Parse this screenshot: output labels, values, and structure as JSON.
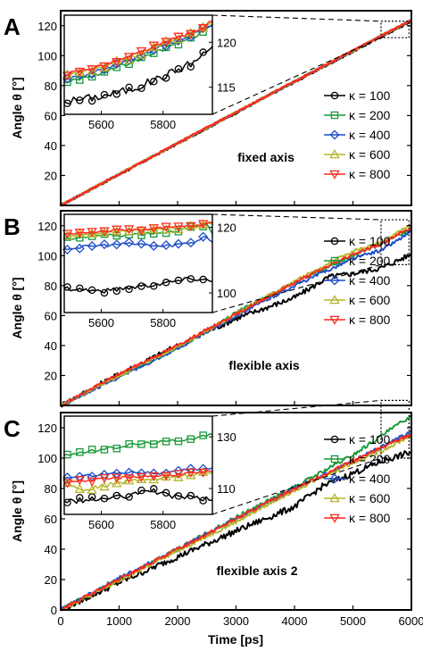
{
  "x_axis_label": "Time [ps]",
  "colors": [
    "#000000",
    "#1a9a3a",
    "#1f4fc8",
    "#b5b52a",
    "#ff2a1e"
  ],
  "chart_data": [
    {
      "type": "line",
      "panel_label": "A",
      "annotation": "fixed axis",
      "ylabel": "Angle θ [°]",
      "xlim": [
        0,
        6000
      ],
      "ylim": [
        0,
        130
      ],
      "x_ticks": [
        "0",
        "1000",
        "2000",
        "3000",
        "4000",
        "5000",
        "6000"
      ],
      "y_ticks": [
        "20",
        "40",
        "60",
        "80",
        "100",
        "120"
      ],
      "series": [
        {
          "name": "κ = 100",
          "marker": "circle",
          "x": [
            0,
            1000,
            2000,
            3000,
            4000,
            5000,
            6000
          ],
          "y": [
            0,
            20.6,
            41.3,
            61.8,
            82.4,
            102.8,
            123.0
          ]
        },
        {
          "name": "κ = 200",
          "marker": "square",
          "x": [
            0,
            1000,
            2000,
            3000,
            4000,
            5000,
            6000
          ],
          "y": [
            0,
            20.8,
            41.5,
            62.1,
            82.7,
            103.2,
            123.6
          ]
        },
        {
          "name": "κ = 400",
          "marker": "diamond",
          "x": [
            0,
            1000,
            2000,
            3000,
            4000,
            5000,
            6000
          ],
          "y": [
            0,
            20.8,
            41.5,
            62.1,
            82.7,
            103.3,
            123.7
          ]
        },
        {
          "name": "κ = 600",
          "marker": "triangle-up",
          "x": [
            0,
            1000,
            2000,
            3000,
            4000,
            5000,
            6000
          ],
          "y": [
            0,
            20.8,
            41.6,
            62.2,
            82.8,
            103.4,
            123.8
          ]
        },
        {
          "name": "κ = 800",
          "marker": "triangle-down",
          "x": [
            0,
            1000,
            2000,
            3000,
            4000,
            5000,
            6000
          ],
          "y": [
            0,
            20.8,
            41.6,
            62.2,
            82.8,
            103.4,
            123.8
          ]
        }
      ],
      "inset": {
        "xlim": [
          5480,
          5960
        ],
        "ylim": [
          112,
          123
        ],
        "x_ticks": [
          "5600",
          "5800"
        ],
        "y_ticks": [
          "115",
          "120"
        ],
        "series": [
          {
            "name": "κ = 100",
            "x": [
              5480,
              5600,
              5700,
              5800,
              5900,
              5960
            ],
            "y": [
              113.4,
              114.0,
              114.8,
              116.2,
              117.8,
              119.5
            ]
          },
          {
            "name": "κ = 200",
            "x": [
              5480,
              5600,
              5700,
              5800,
              5900,
              5960
            ],
            "y": [
              115.5,
              116.6,
              117.8,
              119.2,
              120.6,
              121.8
            ]
          },
          {
            "name": "κ = 400",
            "x": [
              5480,
              5600,
              5700,
              5800,
              5900,
              5960
            ],
            "y": [
              115.8,
              116.9,
              118.1,
              119.5,
              120.9,
              122.0
            ]
          },
          {
            "name": "κ = 600",
            "x": [
              5480,
              5600,
              5700,
              5800,
              5900,
              5960
            ],
            "y": [
              116.2,
              117.2,
              118.3,
              119.8,
              121.1,
              122.2
            ]
          },
          {
            "name": "κ = 800",
            "x": [
              5480,
              5600,
              5700,
              5800,
              5900,
              5960
            ],
            "y": [
              116.4,
              117.4,
              118.5,
              119.9,
              121.2,
              122.3
            ]
          }
        ]
      }
    },
    {
      "type": "line",
      "panel_label": "B",
      "annotation": "flexible axis",
      "ylabel": "Angle θ [°]",
      "xlim": [
        0,
        6000
      ],
      "ylim": [
        0,
        130
      ],
      "x_ticks": [
        "0",
        "1000",
        "2000",
        "3000",
        "4000",
        "5000",
        "6000"
      ],
      "y_ticks": [
        "20",
        "40",
        "60",
        "80",
        "100",
        "120"
      ],
      "series": [
        {
          "name": "κ = 100",
          "marker": "circle",
          "x": [
            0,
            1000,
            2000,
            3000,
            4000,
            4600,
            5000,
            5500,
            6000
          ],
          "y": [
            0,
            21,
            40,
            58,
            72,
            86,
            88,
            92,
            101
          ]
        },
        {
          "name": "κ = 200",
          "marker": "square",
          "x": [
            0,
            1000,
            2000,
            3000,
            4000,
            5000,
            5500,
            6000
          ],
          "y": [
            0,
            20,
            38,
            62,
            82,
            100,
            108,
            118
          ]
        },
        {
          "name": "κ = 400",
          "marker": "diamond",
          "x": [
            0,
            1000,
            2000,
            3000,
            4000,
            5000,
            5500,
            6000
          ],
          "y": [
            0,
            19,
            38,
            60,
            80,
            98,
            104,
            116
          ]
        },
        {
          "name": "κ = 600",
          "marker": "triangle-up",
          "x": [
            0,
            1000,
            2000,
            3000,
            4000,
            5000,
            5500,
            6000
          ],
          "y": [
            0,
            20,
            39,
            61,
            83,
            103,
            109,
            121
          ]
        },
        {
          "name": "κ = 800",
          "marker": "triangle-down",
          "x": [
            0,
            1000,
            2000,
            3000,
            4000,
            5000,
            5500,
            6000
          ],
          "y": [
            0,
            21,
            40,
            61,
            82,
            101,
            108,
            119
          ]
        }
      ],
      "inset": {
        "xlim": [
          5480,
          5960
        ],
        "ylim": [
          94,
          124
        ],
        "x_ticks": [
          "5600",
          "5800"
        ],
        "y_ticks": [
          "100",
          "120"
        ],
        "series": [
          {
            "name": "κ = 100",
            "x": [
              5480,
              5550,
              5600,
              5700,
              5800,
              5900,
              5940,
              5960
            ],
            "y": [
              101.5,
              101,
              100.5,
              101.8,
              103,
              104.5,
              104,
              103.5
            ]
          },
          {
            "name": "κ = 200",
            "x": [
              5480,
              5600,
              5700,
              5800,
              5900,
              5940,
              5960
            ],
            "y": [
              116.5,
              117.5,
              117.8,
              118.5,
              119.8,
              121,
              118
            ]
          },
          {
            "name": "κ = 400",
            "x": [
              5480,
              5600,
              5700,
              5800,
              5900,
              5940,
              5960
            ],
            "y": [
              113.5,
              114.5,
              115,
              114.2,
              115.5,
              117.5,
              115.5
            ]
          },
          {
            "name": "κ = 600",
            "x": [
              5480,
              5600,
              5700,
              5800,
              5900,
              5940,
              5960
            ],
            "y": [
              117.5,
              118.2,
              119,
              119.5,
              120,
              121.5,
              121
            ]
          },
          {
            "name": "κ = 800",
            "x": [
              5480,
              5600,
              5700,
              5800,
              5900,
              5940,
              5960
            ],
            "y": [
              118,
              118.8,
              119.3,
              119.8,
              120.5,
              121,
              121.5
            ]
          }
        ]
      }
    },
    {
      "type": "line",
      "panel_label": "C",
      "annotation": "flexible axis 2",
      "ylabel": "Angle θ [°]",
      "xlim": [
        0,
        6000
      ],
      "ylim": [
        0,
        130
      ],
      "x_ticks": [
        "0",
        "1000",
        "2000",
        "3000",
        "4000",
        "5000",
        "6000"
      ],
      "y_ticks": [
        "0",
        "20",
        "40",
        "60",
        "80",
        "100",
        "120"
      ],
      "series": [
        {
          "name": "κ = 100",
          "marker": "circle",
          "x": [
            0,
            1000,
            2000,
            3000,
            3500,
            4000,
            4500,
            5000,
            5500,
            6000
          ],
          "y": [
            0,
            18,
            35,
            52,
            60,
            68,
            82,
            90,
            98,
            104
          ]
        },
        {
          "name": "κ = 200",
          "marker": "square",
          "x": [
            0,
            1000,
            2000,
            3000,
            4000,
            5000,
            5500,
            6000
          ],
          "y": [
            0,
            20,
            40,
            61,
            81,
            102,
            115,
            128
          ]
        },
        {
          "name": "κ = 400",
          "marker": "diamond",
          "x": [
            0,
            1000,
            2000,
            3000,
            4000,
            5000,
            5500,
            6000
          ],
          "y": [
            0,
            21,
            40,
            60,
            80,
            98,
            108,
            117
          ]
        },
        {
          "name": "κ = 600",
          "marker": "triangle-up",
          "x": [
            0,
            1000,
            2000,
            3000,
            4000,
            5000,
            5500,
            6000
          ],
          "y": [
            0,
            19,
            39,
            58,
            79,
            97,
            105,
            115
          ]
        },
        {
          "name": "κ = 800",
          "marker": "triangle-down",
          "x": [
            0,
            1000,
            2000,
            3000,
            4000,
            5000,
            5500,
            6000
          ],
          "y": [
            0,
            20,
            40,
            60,
            80,
            98,
            107,
            116
          ]
        }
      ],
      "inset": {
        "xlim": [
          5480,
          5960
        ],
        "ylim": [
          100,
          138
        ],
        "x_ticks": [
          "5600",
          "5800"
        ],
        "y_ticks": [
          "110",
          "130"
        ],
        "series": [
          {
            "name": "κ = 100",
            "x": [
              5480,
              5550,
              5600,
              5700,
              5750,
              5800,
              5900,
              5960
            ],
            "y": [
              105,
              105.5,
              106,
              107,
              110,
              107.5,
              106.5,
              105.5
            ]
          },
          {
            "name": "κ = 200",
            "x": [
              5480,
              5600,
              5700,
              5800,
              5900,
              5960
            ],
            "y": [
              123,
              125,
              127,
              128,
              129.5,
              131
            ]
          },
          {
            "name": "κ = 400",
            "x": [
              5480,
              5600,
              5700,
              5800,
              5900,
              5960
            ],
            "y": [
              114,
              115.5,
              116.5,
              116,
              117.5,
              118
            ]
          },
          {
            "name": "κ = 600",
            "x": [
              5480,
              5550,
              5600,
              5700,
              5800,
              5900,
              5960
            ],
            "y": [
              112,
              109.5,
              111,
              113,
              114,
              115.5,
              116
            ]
          },
          {
            "name": "κ = 800",
            "x": [
              5480,
              5600,
              5700,
              5800,
              5900,
              5960
            ],
            "y": [
              112.5,
              113.5,
              114.5,
              115,
              116,
              116.5
            ]
          }
        ]
      }
    }
  ]
}
